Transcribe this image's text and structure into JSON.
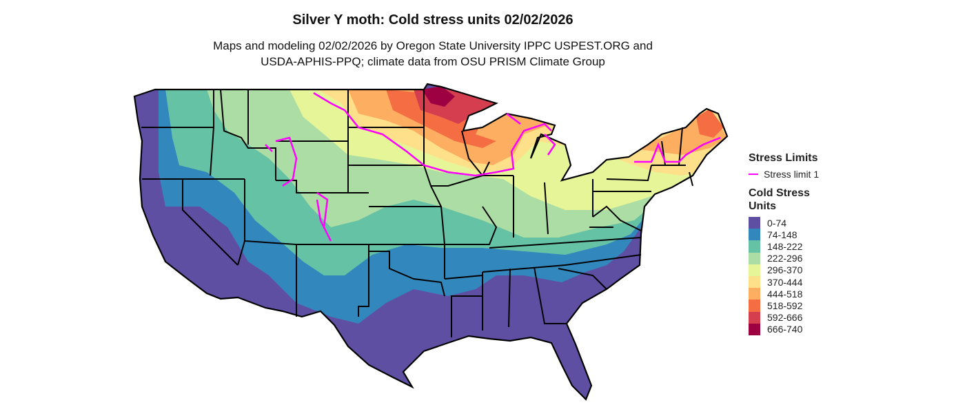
{
  "title": "Silver Y moth: Cold stress units 02/02/2026",
  "subtitle_line1": "Maps and modeling 02/02/2026 by Oregon State University IPPC USPEST.ORG and",
  "subtitle_line2": "USDA-APHIS-PPQ; climate data from OSU PRISM Climate Group",
  "legend": {
    "stress_title": "Stress Limits",
    "stress_item": "Stress limit 1",
    "stress_color": "#FF00FF",
    "units_title_1": "Cold Stress",
    "units_title_2": "Units",
    "classes": [
      {
        "label": "0-74",
        "color": "#5E4FA2"
      },
      {
        "label": "74-148",
        "color": "#3288BD"
      },
      {
        "label": "148-222",
        "color": "#66C2A5"
      },
      {
        "label": "222-296",
        "color": "#ABDDA4"
      },
      {
        "label": "296-370",
        "color": "#E6F598"
      },
      {
        "label": "370-444",
        "color": "#FEE08B"
      },
      {
        "label": "444-518",
        "color": "#FDAE61"
      },
      {
        "label": "518-592",
        "color": "#F46D43"
      },
      {
        "label": "592-666",
        "color": "#D53E4F"
      },
      {
        "label": "666-740",
        "color": "#9E0142"
      }
    ]
  }
}
